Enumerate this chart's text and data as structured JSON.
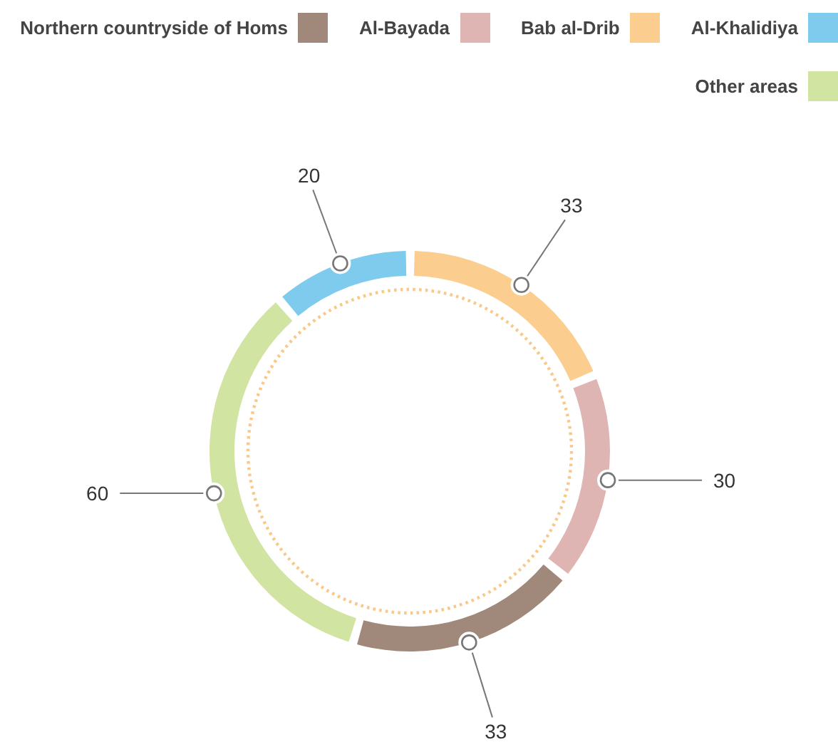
{
  "chart_data": {
    "type": "donut",
    "categories": [
      "Northern countryside of Homs",
      "Al-Bayada",
      "Bab al-Drib",
      "Al-Khalidiya",
      "Other areas"
    ],
    "values": [
      33,
      30,
      33,
      20,
      60
    ],
    "colors": [
      "#a0887a",
      "#dfb5b3",
      "#fbcd8f",
      "#7ecbee",
      "#d2e4a2"
    ],
    "legend": "top right",
    "data_labels": true
  }
}
